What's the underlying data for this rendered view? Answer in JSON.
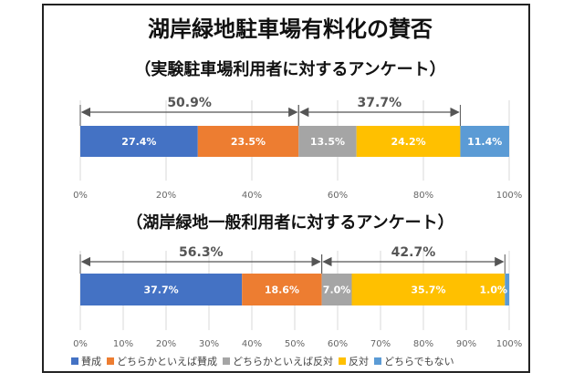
{
  "title": "湖岸緑地駐車場有料化の賛否",
  "colors": {
    "賛成": "#4472c4",
    "どちらかといえば賛成": "#ed7d31",
    "どちらかといえば反対": "#a5a5a5",
    "反対": "#ffc000",
    "どちらでもない": "#5b9bd5"
  },
  "chart_data": [
    {
      "type": "bar",
      "orientation": "horizontal-stacked-100",
      "subtitle": "（実験駐車場利用者に対するアンケート）",
      "categories": [
        "賛成",
        "どちらかといえば賛成",
        "どちらかといえば反対",
        "反対",
        "どちらでもない"
      ],
      "values": [
        27.4,
        23.5,
        13.5,
        24.2,
        11.4
      ],
      "labels": [
        "27.4%",
        "23.5%",
        "13.5%",
        "24.2%",
        "11.4%"
      ],
      "xlim": [
        0,
        100
      ],
      "ticks": [
        "0%",
        "20%",
        "40%",
        "60%",
        "80%",
        "100%"
      ],
      "tick_values": [
        0,
        20,
        40,
        60,
        80,
        100
      ],
      "grid": true,
      "annotations": [
        {
          "text": "50.9%",
          "from": 0,
          "to": 50.9
        },
        {
          "text": "37.7%",
          "from": 50.9,
          "to": 88.6
        }
      ]
    },
    {
      "type": "bar",
      "orientation": "horizontal-stacked-100",
      "subtitle": "（湖岸緑地一般利用者に対するアンケート）",
      "categories": [
        "賛成",
        "どちらかといえば賛成",
        "どちらかといえば反対",
        "反対",
        "どちらでもない"
      ],
      "values": [
        37.7,
        18.6,
        7.0,
        35.7,
        1.0
      ],
      "labels": [
        "37.7%",
        "18.6%",
        "7.0%",
        "35.7%",
        "1.0%"
      ],
      "xlim": [
        0,
        100
      ],
      "ticks": [
        "0%",
        "10%",
        "20%",
        "30%",
        "40%",
        "50%",
        "60%",
        "70%",
        "80%",
        "90%",
        "100%"
      ],
      "tick_values": [
        0,
        10,
        20,
        30,
        40,
        50,
        60,
        70,
        80,
        90,
        100
      ],
      "grid": true,
      "annotations": [
        {
          "text": "56.3%",
          "from": 0,
          "to": 56.3
        },
        {
          "text": "42.7%",
          "from": 56.3,
          "to": 99.0
        }
      ]
    }
  ],
  "legend": {
    "placement": "bottom",
    "items": [
      "賛成",
      "どちらかといえば賛成",
      "どちらかといえば反対",
      "反対",
      "どちらでもない"
    ]
  }
}
